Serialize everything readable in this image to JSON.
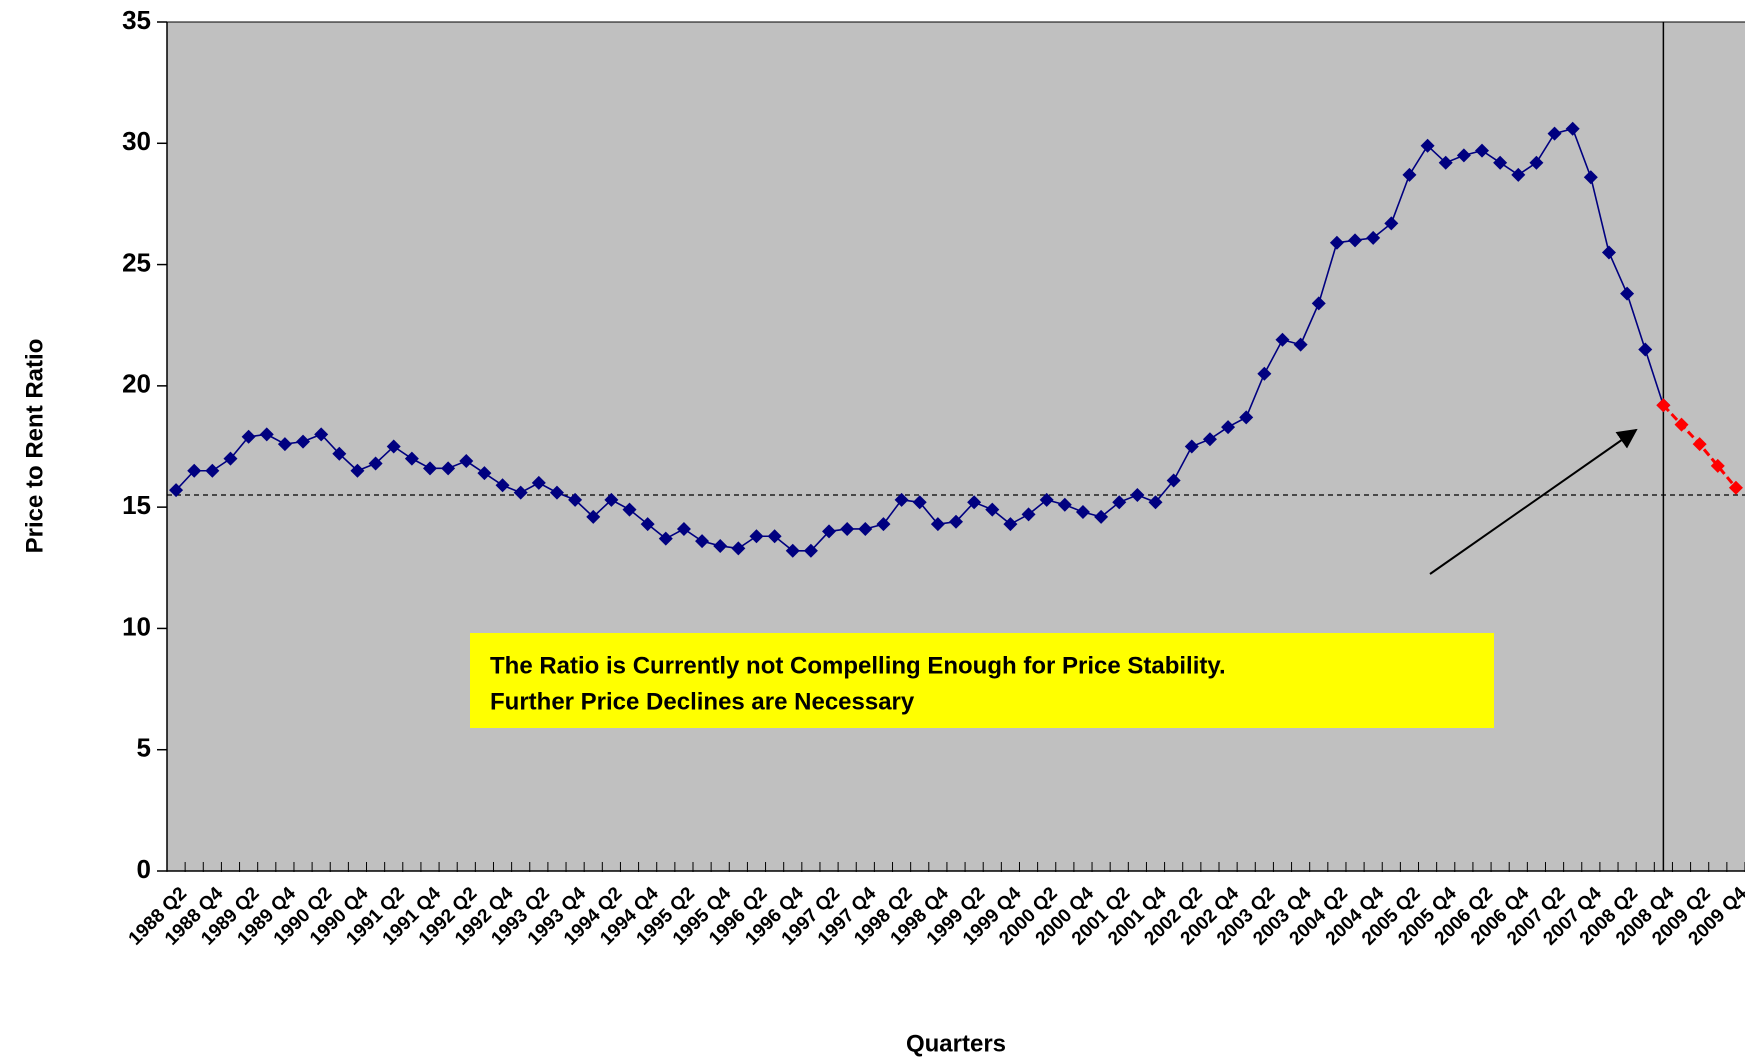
{
  "chart_data": {
    "type": "line",
    "y_axis_label": "Price to Rent Ratio",
    "x_axis_label": "Quarters",
    "annotation": [
      "The Ratio is Currently not Compelling Enough for Price Stability.",
      "Further Price Declines are Necessary"
    ],
    "categories": [
      "1988 Q2",
      null,
      "1988 Q4",
      null,
      "1989 Q2",
      null,
      "1989 Q4",
      null,
      "1990 Q2",
      null,
      "1990 Q4",
      null,
      "1991 Q2",
      null,
      "1991 Q4",
      null,
      "1992 Q2",
      null,
      "1992 Q4",
      null,
      "1993 Q2",
      null,
      "1993 Q4",
      null,
      "1994 Q2",
      null,
      "1994 Q4",
      null,
      "1995 Q2",
      null,
      "1995 Q4",
      null,
      "1996 Q2",
      null,
      "1996 Q4",
      null,
      "1997 Q2",
      null,
      "1997 Q4",
      null,
      "1998 Q2",
      null,
      "1998 Q4",
      null,
      "1999 Q2",
      null,
      "1999 Q4",
      null,
      "2000 Q2",
      null,
      "2000 Q4",
      null,
      "2001 Q2",
      null,
      "2001 Q4",
      null,
      "2002 Q2",
      null,
      "2002 Q4",
      null,
      "2003 Q2",
      null,
      "2003 Q4",
      null,
      "2004 Q2",
      null,
      "2004 Q4",
      null,
      "2005 Q2",
      null,
      "2005 Q4",
      null,
      "2006 Q2",
      null,
      "2006 Q4",
      null,
      "2007 Q2",
      null,
      "2007 Q4",
      null,
      "2008 Q2",
      null,
      "2008 Q4",
      null,
      "2009 Q2",
      null,
      "2009 Q4"
    ],
    "series": [
      {
        "color": "#000080",
        "dashed": false,
        "values": [
          15.7,
          16.5,
          16.5,
          17.0,
          17.9,
          18.0,
          17.6,
          17.7,
          18.0,
          17.2,
          16.5,
          16.8,
          17.5,
          17.0,
          16.6,
          16.6,
          16.9,
          16.4,
          15.9,
          15.6,
          16.0,
          15.6,
          15.3,
          14.6,
          15.3,
          14.9,
          14.3,
          13.7,
          14.1,
          13.6,
          13.4,
          13.3,
          13.8,
          13.8,
          13.2,
          13.2,
          14.0,
          14.1,
          14.1,
          14.3,
          15.3,
          15.2,
          14.3,
          14.4,
          15.2,
          14.9,
          14.3,
          14.7,
          15.3,
          15.1,
          14.8,
          14.6,
          15.2,
          15.5,
          15.2,
          16.1,
          17.5,
          17.8,
          18.3,
          18.7,
          20.5,
          21.9,
          21.7,
          23.4,
          25.9,
          26.0,
          26.1,
          26.7,
          28.7,
          29.9,
          29.2,
          29.5,
          29.7,
          29.2,
          28.7,
          29.2,
          30.4,
          30.6,
          28.6,
          25.5,
          23.8,
          21.5,
          19.2,
          null,
          null,
          null,
          null
        ]
      },
      {
        "color": "#ff0000",
        "dashed": true,
        "values": [
          null,
          null,
          null,
          null,
          null,
          null,
          null,
          null,
          null,
          null,
          null,
          null,
          null,
          null,
          null,
          null,
          null,
          null,
          null,
          null,
          null,
          null,
          null,
          null,
          null,
          null,
          null,
          null,
          null,
          null,
          null,
          null,
          null,
          null,
          null,
          null,
          null,
          null,
          null,
          null,
          null,
          null,
          null,
          null,
          null,
          null,
          null,
          null,
          null,
          null,
          null,
          null,
          null,
          null,
          null,
          null,
          null,
          null,
          null,
          null,
          null,
          null,
          null,
          null,
          null,
          null,
          null,
          null,
          null,
          null,
          null,
          null,
          null,
          null,
          null,
          null,
          null,
          null,
          null,
          null,
          null,
          null,
          19.2,
          18.4,
          17.6,
          16.7,
          15.8
        ]
      }
    ],
    "average_line": 15.5,
    "ylim": [
      0,
      35
    ],
    "yticks": [
      0,
      5,
      10,
      15,
      20,
      25,
      30,
      35
    ],
    "plot_background": "#c0c0c0"
  }
}
